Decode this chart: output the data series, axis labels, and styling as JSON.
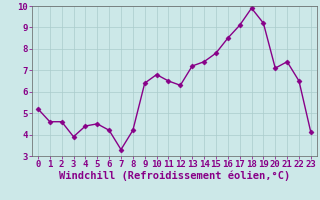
{
  "x": [
    0,
    1,
    2,
    3,
    4,
    5,
    6,
    7,
    8,
    9,
    10,
    11,
    12,
    13,
    14,
    15,
    16,
    17,
    18,
    19,
    20,
    21,
    22,
    23
  ],
  "y": [
    5.2,
    4.6,
    4.6,
    3.9,
    4.4,
    4.5,
    4.2,
    3.3,
    4.2,
    6.4,
    6.8,
    6.5,
    6.3,
    7.2,
    7.4,
    7.8,
    8.5,
    9.1,
    9.9,
    9.2,
    7.1,
    7.4,
    6.5,
    4.1
  ],
  "line_color": "#880088",
  "marker": "D",
  "marker_size": 2.5,
  "bg_color": "#cce8e8",
  "grid_color": "#aacccc",
  "xlabel": "Windchill (Refroidissement éolien,°C)",
  "xlim": [
    -0.5,
    23.5
  ],
  "ylim": [
    3.0,
    10.0
  ],
  "yticks": [
    3,
    4,
    5,
    6,
    7,
    8,
    9,
    10
  ],
  "xticks": [
    0,
    1,
    2,
    3,
    4,
    5,
    6,
    7,
    8,
    9,
    10,
    11,
    12,
    13,
    14,
    15,
    16,
    17,
    18,
    19,
    20,
    21,
    22,
    23
  ],
  "label_color": "#880088",
  "tick_fontsize": 6.5,
  "xlabel_fontsize": 7.5,
  "line_width": 1.0
}
